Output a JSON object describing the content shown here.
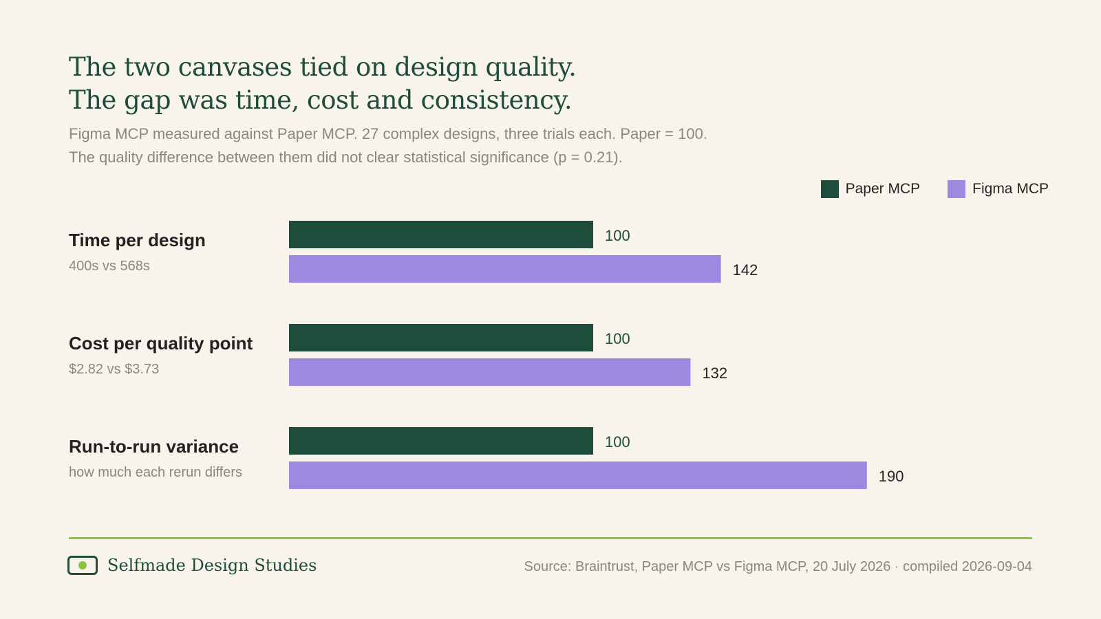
{
  "title_lines": [
    "The two canvases tied on design quality.",
    "The gap was time, cost and consistency."
  ],
  "subtitle_lines": [
    "Figma MCP measured against Paper MCP. 27 complex designs, three trials each. Paper = 100.",
    "The quality difference between them did not clear statistical significance (p = 0.21)."
  ],
  "legend": {
    "paper": "Paper MCP",
    "figma": "Figma MCP"
  },
  "colors": {
    "paper": "#1e4d3b",
    "figma": "#9d8ae0",
    "accent_rule": "#8cc43f"
  },
  "chart_data": {
    "type": "bar",
    "orientation": "horizontal",
    "categories": [
      "Time per design",
      "Cost per quality point",
      "Run-to-run variance"
    ],
    "category_notes": [
      "400s vs 568s",
      "$2.82 vs $3.73",
      "how much each rerun differs"
    ],
    "series": [
      {
        "name": "Paper MCP",
        "values": [
          100,
          100,
          100
        ]
      },
      {
        "name": "Figma MCP",
        "values": [
          142,
          132,
          190
        ]
      }
    ],
    "xlim": [
      0,
      190
    ],
    "legend_position": "top-right",
    "grid": false
  },
  "footer": {
    "brand": "Selfmade Design Studies",
    "source": "Source: Braintrust, Paper MCP vs Figma MCP, 20 July 2026 · compiled 2026-09-04"
  }
}
